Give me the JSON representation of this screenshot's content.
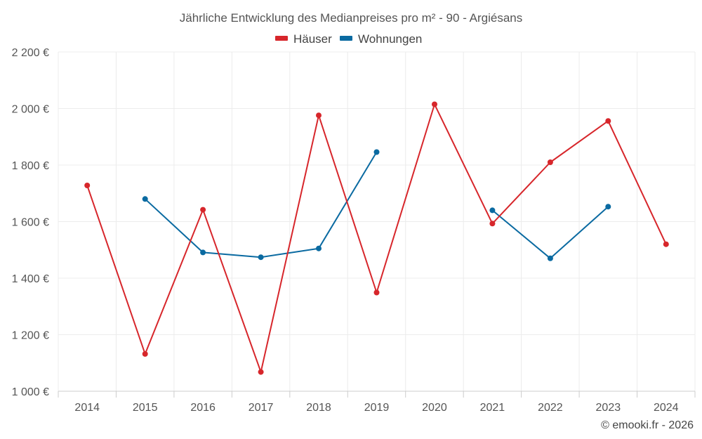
{
  "chart_data": {
    "type": "line",
    "title": "Jährliche Entwicklung des Medianpreises pro m² - 90 - Argiésans",
    "xlabel": "",
    "ylabel": "",
    "x": [
      "2014",
      "2015",
      "2016",
      "2017",
      "2018",
      "2019",
      "2020",
      "2021",
      "2022",
      "2023",
      "2024"
    ],
    "ylim": [
      1000,
      2200
    ],
    "yticks": [
      1000,
      1200,
      1400,
      1600,
      1800,
      2000,
      2200
    ],
    "ytick_labels": [
      "1 000 €",
      "1 200 €",
      "1 400 €",
      "1 600 €",
      "1 800 €",
      "2 000 €",
      "2 200 €"
    ],
    "grid": true,
    "legend_position": "top-center",
    "series": [
      {
        "name": "Häuser",
        "color": "#d7262b",
        "values": [
          1728,
          1132,
          1642,
          1068,
          1976,
          1349,
          2015,
          1593,
          1810,
          1956,
          1520
        ]
      },
      {
        "name": "Wohnungen",
        "color": "#0a6aa1",
        "values": [
          null,
          1680,
          1491,
          1474,
          1505,
          1846,
          null,
          1640,
          1470,
          1653,
          null
        ]
      }
    ],
    "credit": "© emooki.fr - 2026"
  }
}
